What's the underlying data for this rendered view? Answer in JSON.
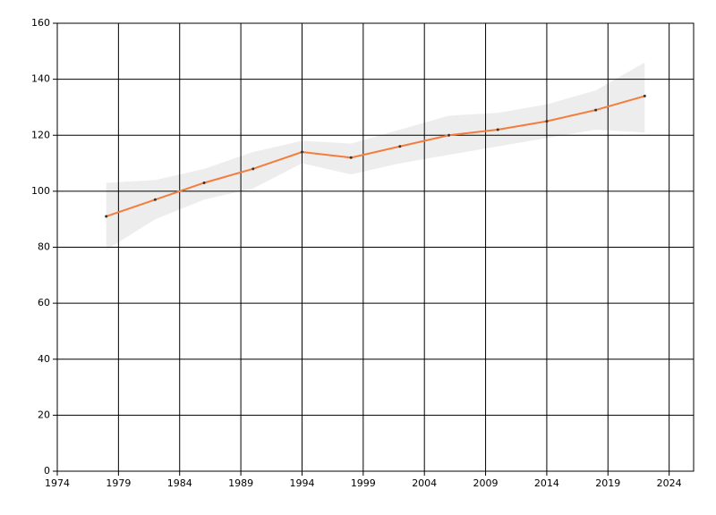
{
  "chart_data": {
    "type": "line",
    "x": [
      1978,
      1982,
      1986,
      1990,
      1994,
      1998,
      2002,
      2006,
      2010,
      2014,
      2018,
      2022
    ],
    "series": [
      {
        "color": "#f47c3c",
        "values": [
          91,
          97,
          103,
          108,
          114,
          112,
          116,
          120,
          122,
          125,
          129,
          134
        ],
        "upper": [
          103,
          104,
          108,
          114,
          118,
          117,
          122,
          127,
          128,
          131,
          136,
          146
        ],
        "lower": [
          79,
          90,
          97,
          101,
          110,
          106,
          110,
          113,
          116,
          119,
          122,
          121
        ],
        "band_color": "#ededed",
        "marker_color": "#333333"
      }
    ],
    "xlim": [
      1974,
      2026
    ],
    "xticks": [
      1974,
      1979,
      1984,
      1989,
      1994,
      1999,
      2004,
      2009,
      2014,
      2019,
      2024
    ],
    "ylim": [
      0,
      160
    ],
    "yticks": [
      0,
      20,
      40,
      60,
      80,
      100,
      120,
      140,
      160
    ],
    "grid": true
  }
}
